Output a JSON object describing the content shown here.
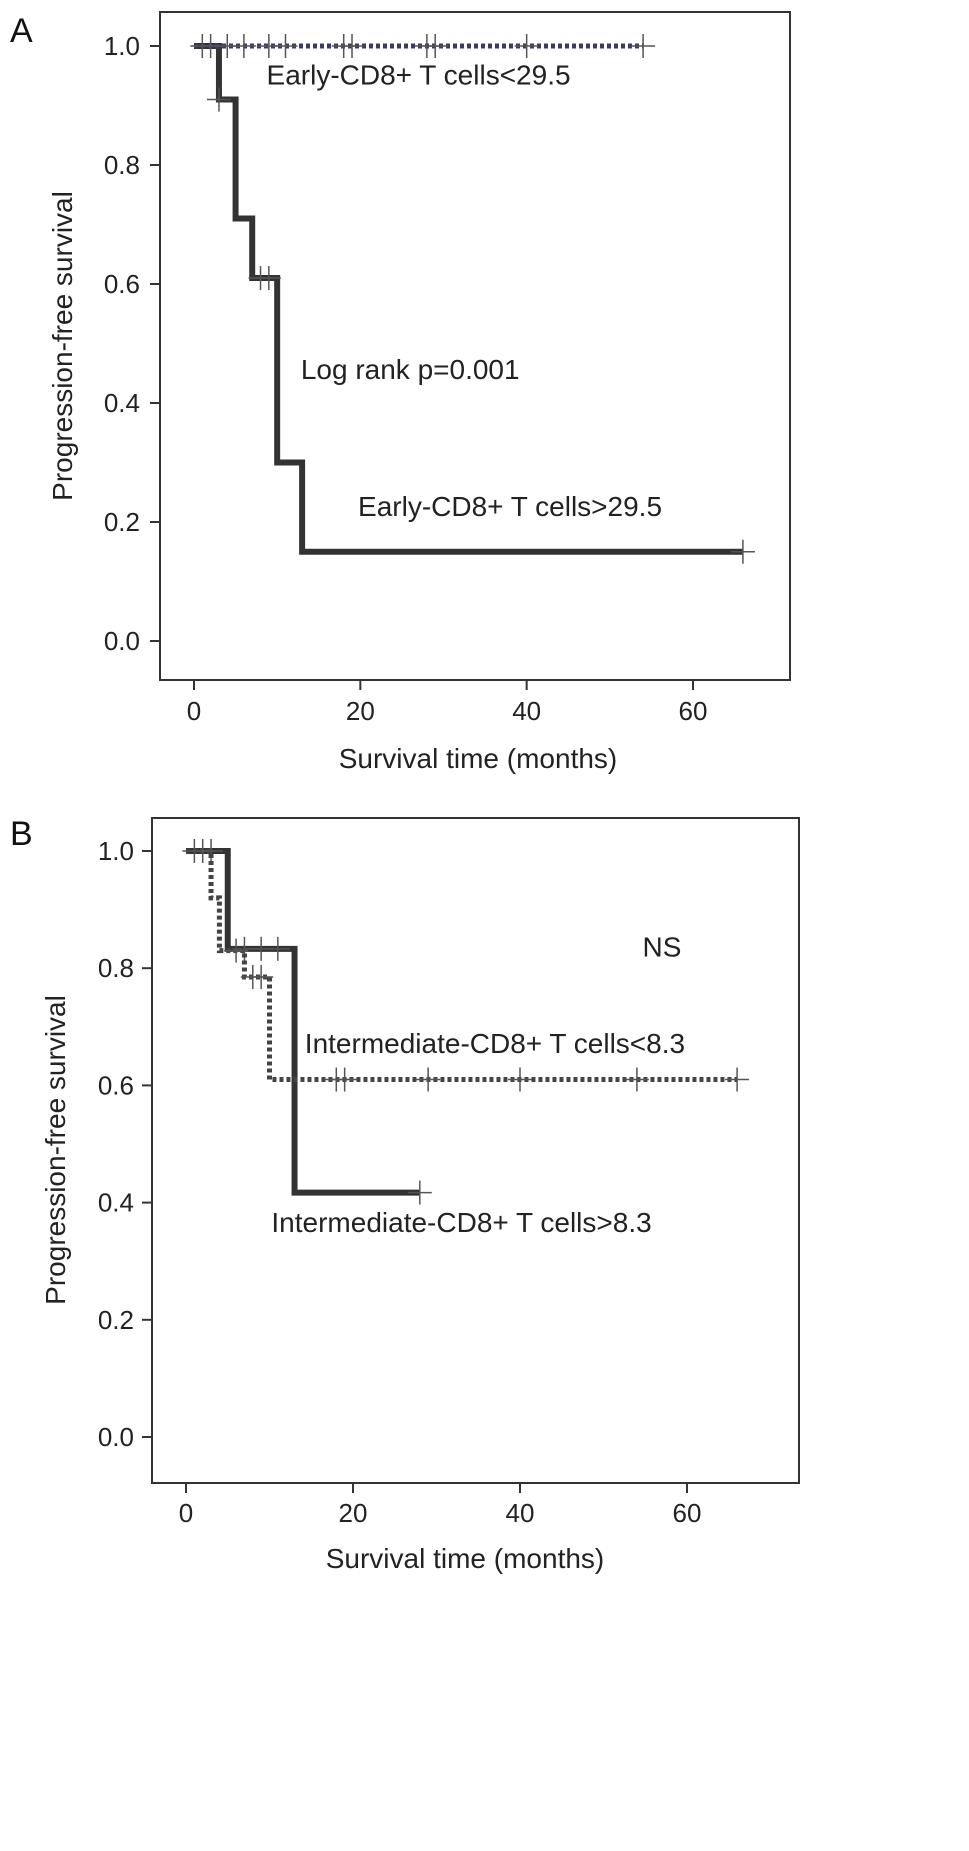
{
  "chart_data": [
    {
      "type": "line",
      "subtype": "kaplan-meier",
      "panel": "A",
      "xlabel": "Survival time (months)",
      "ylabel": "Progression-free survival",
      "xlim": [
        -4,
        72
      ],
      "ylim": [
        -0.05,
        1.05
      ],
      "xticks": [
        0,
        20,
        40,
        60
      ],
      "yticks": [
        0.0,
        0.2,
        0.4,
        0.6,
        0.8,
        1.0
      ],
      "xtick_labels": [
        "0",
        "20",
        "40",
        "60"
      ],
      "ytick_labels": [
        "0.0",
        "0.2",
        "0.4",
        "0.6",
        "0.8",
        "1.0"
      ],
      "grid": false,
      "series": [
        {
          "style": "solid",
          "color": "#333333",
          "steps": [
            [
              0,
              1.0
            ],
            [
              3,
              0.91
            ],
            [
              5,
              0.71
            ],
            [
              7,
              0.61
            ],
            [
              10,
              0.3
            ],
            [
              13,
              0.15
            ],
            [
              66,
              0.15
            ]
          ],
          "censors": [
            [
              3,
              0.91
            ],
            [
              8,
              0.61
            ],
            [
              9,
              0.61
            ],
            [
              66,
              0.15
            ]
          ]
        },
        {
          "style": "dotted",
          "color": "#3a3a6a",
          "steps": [
            [
              0,
              1.0
            ],
            [
              54,
              1.0
            ]
          ],
          "censors": [
            [
              1,
              1.0
            ],
            [
              2,
              1.0
            ],
            [
              4,
              1.0
            ],
            [
              6,
              1.0
            ],
            [
              9,
              1.0
            ],
            [
              11,
              1.0
            ],
            [
              18,
              1.0
            ],
            [
              19,
              1.0
            ],
            [
              28,
              1.0
            ],
            [
              29,
              1.0
            ],
            [
              40,
              1.0
            ],
            [
              54,
              1.0
            ]
          ]
        }
      ],
      "annotations": [
        {
          "text": "Early-CD8+ T cells<29.5",
          "x": 27,
          "y": 0.935
        },
        {
          "text": "Log rank p=0.001",
          "x": 26,
          "y": 0.44
        },
        {
          "text": "Early-CD8+ T cells>29.5",
          "x": 38,
          "y": 0.21
        }
      ]
    },
    {
      "type": "line",
      "subtype": "kaplan-meier",
      "panel": "B",
      "xlabel": "Survival time (months)",
      "ylabel": "Progression-free survival",
      "xlim": [
        -4,
        72
      ],
      "ylim": [
        -0.05,
        1.05
      ],
      "xticks": [
        0,
        20,
        40,
        60
      ],
      "yticks": [
        0.0,
        0.2,
        0.4,
        0.6,
        0.8,
        1.0
      ],
      "xtick_labels": [
        "0",
        "20",
        "40",
        "60"
      ],
      "ytick_labels": [
        "0.0",
        "0.2",
        "0.4",
        "0.6",
        "0.8",
        "1.0"
      ],
      "grid": false,
      "series": [
        {
          "style": "solid",
          "color": "#333333",
          "steps": [
            [
              0,
              1.0
            ],
            [
              5,
              0.833
            ],
            [
              13,
              0.417
            ],
            [
              28,
              0.417
            ]
          ],
          "censors": [
            [
              1,
              1.0
            ],
            [
              3,
              1.0
            ],
            [
              7,
              0.833
            ],
            [
              9,
              0.833
            ],
            [
              11,
              0.833
            ],
            [
              28,
              0.417
            ]
          ]
        },
        {
          "style": "dotted",
          "color": "#444444",
          "steps": [
            [
              0,
              1.0
            ],
            [
              3,
              0.92
            ],
            [
              4,
              0.83
            ],
            [
              7,
              0.785
            ],
            [
              10,
              0.61
            ],
            [
              66,
              0.61
            ]
          ],
          "censors": [
            [
              2,
              1.0
            ],
            [
              6,
              0.83
            ],
            [
              8,
              0.785
            ],
            [
              9,
              0.785
            ],
            [
              18,
              0.61
            ],
            [
              19,
              0.61
            ],
            [
              29,
              0.61
            ],
            [
              40,
              0.61
            ],
            [
              54,
              0.61
            ],
            [
              66,
              0.61
            ]
          ]
        }
      ],
      "annotations": [
        {
          "text": "NS",
          "x": 57,
          "y": 0.82
        },
        {
          "text": "Intermediate-CD8+ T cells<8.3",
          "x": 37,
          "y": 0.655
        },
        {
          "text": "Intermediate-CD8+ T cells>8.3",
          "x": 33,
          "y": 0.35
        }
      ]
    }
  ]
}
